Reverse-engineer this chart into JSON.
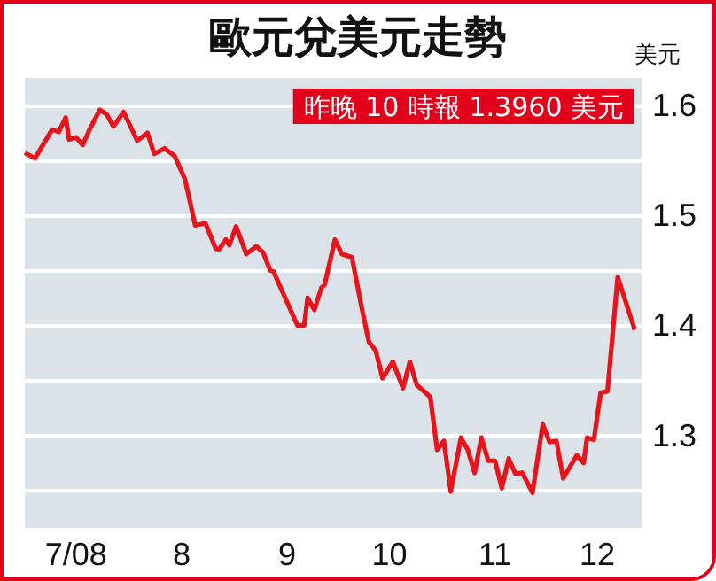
{
  "chart_data": {
    "type": "line",
    "title": "歐元兌美元走勢",
    "ylabel": "美元",
    "annotations": [
      "昨晚 10 時報 1.3960 美元"
    ],
    "xlim": [
      "2008-07-01",
      "2008-12-29"
    ],
    "xticks": [
      {
        "value": "2008-07-16",
        "label": "7/08"
      },
      {
        "value": "2008-08-16",
        "label": "8"
      },
      {
        "value": "2008-09-16",
        "label": "9"
      },
      {
        "value": "2008-10-16",
        "label": "10"
      },
      {
        "value": "2008-11-16",
        "label": "11"
      },
      {
        "value": "2008-12-16",
        "label": "12"
      }
    ],
    "ylim": [
      1.216,
      1.625
    ],
    "yticks": [
      {
        "value": 1.25,
        "label": null
      },
      1.3,
      {
        "value": 1.35,
        "label": null
      },
      1.4,
      {
        "value": 1.45,
        "label": null
      },
      1.5,
      {
        "value": 1.55,
        "label": null
      },
      1.6
    ],
    "grid": "y",
    "marker": "none",
    "line_style": "solid",
    "series": [
      {
        "color": "#e8141b",
        "x": [
          "2008-07-01",
          "2008-07-04",
          "2008-07-09",
          "2008-07-11",
          "2008-07-13",
          "2008-07-14",
          "2008-07-16",
          "2008-07-18",
          "2008-07-20",
          "2008-07-23",
          "2008-07-25",
          "2008-07-27",
          "2008-07-30",
          "2008-08-03",
          "2008-08-06",
          "2008-08-08",
          "2008-08-11",
          "2008-08-14",
          "2008-08-17",
          "2008-08-20",
          "2008-08-23",
          "2008-08-26",
          "2008-08-27",
          "2008-08-29",
          "2008-08-30",
          "2008-09-01",
          "2008-09-04",
          "2008-09-07",
          "2008-09-09",
          "2008-09-11",
          "2008-09-12",
          "2008-09-15",
          "2008-09-17",
          "2008-09-19",
          "2008-09-21",
          "2008-09-22",
          "2008-09-24",
          "2008-09-26",
          "2008-09-27",
          "2008-09-30",
          "2008-10-02",
          "2008-10-05",
          "2008-10-08",
          "2008-10-10",
          "2008-10-12",
          "2008-10-14",
          "2008-10-17",
          "2008-10-20",
          "2008-10-22",
          "2008-10-24",
          "2008-10-28",
          "2008-10-30",
          "2008-11-01",
          "2008-11-03",
          "2008-11-06",
          "2008-11-08",
          "2008-11-10",
          "2008-11-12",
          "2008-11-14",
          "2008-11-16",
          "2008-11-18",
          "2008-11-20",
          "2008-11-22",
          "2008-11-24",
          "2008-11-27",
          "2008-11-30",
          "2008-12-02",
          "2008-12-04",
          "2008-12-06",
          "2008-12-10",
          "2008-12-12",
          "2008-12-13",
          "2008-12-15",
          "2008-12-17",
          "2008-12-19",
          "2008-12-22",
          "2008-12-27"
        ],
        "values": [
          1.557,
          1.552,
          1.578,
          1.576,
          1.589,
          1.569,
          1.571,
          1.564,
          1.578,
          1.596,
          1.592,
          1.581,
          1.594,
          1.568,
          1.575,
          1.556,
          1.561,
          1.554,
          1.533,
          1.491,
          1.493,
          1.47,
          1.469,
          1.478,
          1.473,
          1.49,
          1.465,
          1.472,
          1.466,
          1.45,
          1.449,
          1.428,
          1.414,
          1.4,
          1.4,
          1.425,
          1.414,
          1.434,
          1.437,
          1.478,
          1.465,
          1.462,
          1.414,
          1.385,
          1.377,
          1.352,
          1.367,
          1.343,
          1.367,
          1.346,
          1.335,
          1.287,
          1.295,
          1.249,
          1.298,
          1.287,
          1.266,
          1.298,
          1.277,
          1.277,
          1.252,
          1.279,
          1.265,
          1.266,
          1.248,
          1.31,
          1.294,
          1.295,
          1.261,
          1.282,
          1.275,
          1.298,
          1.296,
          1.339,
          1.34,
          1.444,
          1.396
        ]
      }
    ]
  }
}
